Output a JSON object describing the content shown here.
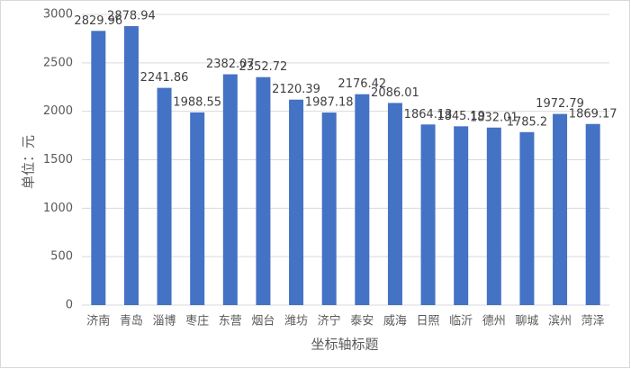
{
  "chart_data": {
    "type": "bar",
    "x_label": "坐标轴标题",
    "y_label": "单位：元",
    "categories": [
      "济南",
      "青岛",
      "淄博",
      "枣庄",
      "东营",
      "烟台",
      "潍坊",
      "济宁",
      "泰安",
      "威海",
      "日照",
      "临沂",
      "德州",
      "聊城",
      "滨州",
      "菏泽"
    ],
    "values": [
      2829.96,
      2878.94,
      2241.86,
      1988.55,
      2382.07,
      2352.72,
      2120.39,
      1987.18,
      2176.42,
      2086.01,
      1864.13,
      1845.19,
      1832.01,
      1785.2,
      1972.79,
      1869.17
    ],
    "color": "#4472c4",
    "ylim": [
      0,
      3000
    ],
    "yticks": [
      0,
      500,
      1000,
      1500,
      2000,
      2500,
      3000
    ],
    "grid": true
  }
}
